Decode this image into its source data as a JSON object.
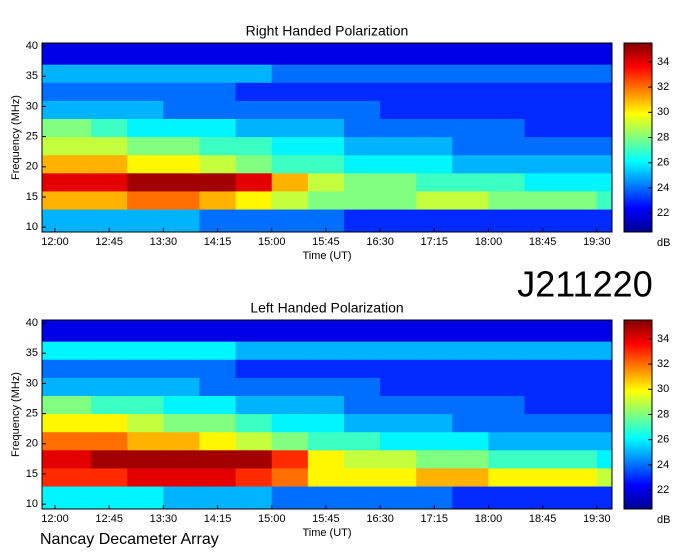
{
  "label": "J211220",
  "footer": "Nancay Decameter Array",
  "chart_data": [
    {
      "type": "heatmap",
      "title": "Right Handed Polarization",
      "xlabel": "Time (UT)",
      "ylabel": "Frequency (MHz)",
      "colorbar_label": "dB",
      "colormap": "jet",
      "xlim": [
        11.82,
        19.71
      ],
      "ylim": [
        9.2,
        40.5
      ],
      "zlim": [
        20.5,
        35.5
      ],
      "xticks": [
        {
          "value": 12,
          "label": "12:00"
        },
        {
          "value": 12.75,
          "label": "12:45"
        },
        {
          "value": 13.5,
          "label": "13:30"
        },
        {
          "value": 14.25,
          "label": "14:15"
        },
        {
          "value": 15,
          "label": "15:00"
        },
        {
          "value": 15.75,
          "label": "15:45"
        },
        {
          "value": 16.5,
          "label": "16:30"
        },
        {
          "value": 17.25,
          "label": "17:15"
        },
        {
          "value": 18,
          "label": "18:00"
        },
        {
          "value": 18.75,
          "label": "18:45"
        },
        {
          "value": 19.5,
          "label": "19:30"
        }
      ],
      "yticks": [
        10,
        15,
        20,
        25,
        30,
        35,
        40
      ],
      "zticks": [
        22,
        24,
        26,
        28,
        30,
        32,
        34
      ],
      "xbins": [
        11.82,
        12.5,
        13,
        13.5,
        14,
        14.5,
        15,
        15.5,
        16,
        16.5,
        17,
        17.5,
        18,
        18.5,
        19,
        19.5,
        19.71
      ],
      "ybins": [
        9.2,
        13,
        16,
        19,
        22,
        25,
        28,
        31,
        34,
        37,
        40.5
      ],
      "z": [
        [
          25,
          25,
          25,
          25,
          24,
          24,
          24,
          24,
          23,
          23,
          23,
          23,
          23,
          23,
          23,
          23
        ],
        [
          31,
          31,
          32,
          32,
          31,
          30,
          29,
          28,
          28,
          28,
          29,
          29,
          28,
          28,
          28,
          27
        ],
        [
          34,
          34,
          35,
          35,
          35,
          34,
          31,
          29,
          28,
          28,
          27,
          27,
          27,
          26,
          26,
          26
        ],
        [
          31,
          31,
          30,
          30,
          29,
          28,
          27,
          27,
          26,
          26,
          26,
          25,
          25,
          25,
          25,
          25
        ],
        [
          29,
          29,
          28,
          28,
          27,
          27,
          26,
          26,
          25,
          25,
          25,
          24,
          24,
          24,
          24,
          24
        ],
        [
          28,
          27,
          26,
          26,
          26,
          25,
          25,
          25,
          24,
          24,
          24,
          24,
          24,
          23,
          23,
          23
        ],
        [
          25,
          25,
          25,
          24,
          24,
          24,
          24,
          24,
          24,
          23,
          23,
          23,
          23,
          23,
          23,
          23
        ],
        [
          24,
          24,
          24,
          24,
          24,
          23,
          23,
          23,
          23,
          23,
          23,
          23,
          23,
          23,
          23,
          23
        ],
        [
          25,
          25,
          25,
          25,
          25,
          25,
          24,
          24,
          24,
          24,
          24,
          24,
          24,
          24,
          24,
          24
        ],
        [
          22,
          22,
          22,
          22,
          22,
          22,
          22,
          22,
          22,
          22,
          22,
          22,
          22,
          22,
          22,
          22
        ]
      ]
    },
    {
      "type": "heatmap",
      "title": "Left Handed Polarization",
      "xlabel": "Time (UT)",
      "ylabel": "Frequency (MHz)",
      "colorbar_label": "dB",
      "colormap": "jet",
      "xlim": [
        11.82,
        19.71
      ],
      "ylim": [
        9.2,
        40.5
      ],
      "zlim": [
        20.5,
        35.5
      ],
      "xticks": [
        {
          "value": 12,
          "label": "12:00"
        },
        {
          "value": 12.75,
          "label": "12:45"
        },
        {
          "value": 13.5,
          "label": "13:30"
        },
        {
          "value": 14.25,
          "label": "14:15"
        },
        {
          "value": 15,
          "label": "15:00"
        },
        {
          "value": 15.75,
          "label": "15:45"
        },
        {
          "value": 16.5,
          "label": "16:30"
        },
        {
          "value": 17.25,
          "label": "17:15"
        },
        {
          "value": 18,
          "label": "18:00"
        },
        {
          "value": 18.75,
          "label": "18:45"
        },
        {
          "value": 19.5,
          "label": "19:30"
        }
      ],
      "yticks": [
        10,
        15,
        20,
        25,
        30,
        35,
        40
      ],
      "zticks": [
        22,
        24,
        26,
        28,
        30,
        32,
        34
      ],
      "xbins": [
        11.82,
        12.5,
        13,
        13.5,
        14,
        14.5,
        15,
        15.5,
        16,
        16.5,
        17,
        17.5,
        18,
        18.5,
        19,
        19.5,
        19.71
      ],
      "ybins": [
        9.2,
        13,
        16,
        19,
        22,
        25,
        28,
        31,
        34,
        37,
        40.5
      ],
      "z": [
        [
          26,
          26,
          26,
          25,
          25,
          25,
          24,
          24,
          24,
          24,
          24,
          23,
          23,
          23,
          23,
          23
        ],
        [
          33,
          33,
          34,
          34,
          34,
          33,
          32,
          30,
          30,
          30,
          31,
          31,
          30,
          30,
          30,
          29
        ],
        [
          34,
          35,
          35,
          35,
          35,
          35,
          33,
          30,
          29,
          29,
          28,
          28,
          27,
          27,
          27,
          26
        ],
        [
          32,
          32,
          31,
          31,
          30,
          29,
          28,
          27,
          27,
          26,
          26,
          26,
          25,
          25,
          25,
          25
        ],
        [
          30,
          30,
          29,
          28,
          28,
          27,
          26,
          26,
          25,
          25,
          25,
          24,
          24,
          24,
          24,
          24
        ],
        [
          28,
          27,
          27,
          26,
          26,
          25,
          25,
          25,
          24,
          24,
          24,
          24,
          24,
          23,
          23,
          23
        ],
        [
          25,
          25,
          25,
          25,
          24,
          24,
          24,
          24,
          24,
          23,
          23,
          23,
          23,
          23,
          23,
          23
        ],
        [
          24,
          24,
          24,
          24,
          24,
          23,
          23,
          23,
          23,
          23,
          23,
          23,
          23,
          23,
          23,
          23
        ],
        [
          26,
          26,
          26,
          26,
          26,
          25,
          25,
          25,
          25,
          25,
          25,
          25,
          25,
          25,
          25,
          25
        ],
        [
          22,
          22,
          22,
          22,
          22,
          22,
          22,
          22,
          22,
          22,
          22,
          22,
          22,
          22,
          22,
          22
        ]
      ]
    }
  ]
}
